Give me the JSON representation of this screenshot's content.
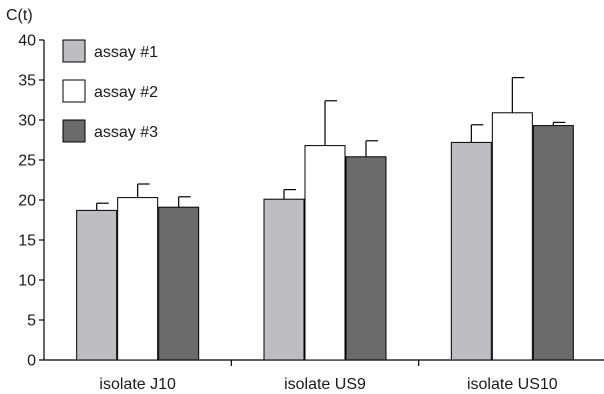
{
  "chart_data": {
    "type": "bar",
    "ylabel": "C(t)",
    "xlabel": "",
    "title": "",
    "ylim": [
      0,
      40
    ],
    "yticks": [
      0,
      5,
      10,
      15,
      20,
      25,
      30,
      35,
      40
    ],
    "grid": false,
    "legend_position": "top-left",
    "categories": [
      "isolate J10",
      "isolate US9",
      "isolate US10"
    ],
    "series": [
      {
        "name": "assay #1",
        "color": "#bdbdc2",
        "values": [
          18.7,
          20.1,
          27.2
        ],
        "errors": [
          0.9,
          1.2,
          2.2
        ]
      },
      {
        "name": "assay #2",
        "color": "#ffffff",
        "values": [
          20.3,
          26.8,
          30.9
        ],
        "errors": [
          1.7,
          5.6,
          4.4
        ]
      },
      {
        "name": "assay #3",
        "color": "#6b6b6b",
        "values": [
          19.1,
          25.4,
          29.3
        ],
        "errors": [
          1.3,
          2.0,
          0.4
        ]
      }
    ]
  }
}
